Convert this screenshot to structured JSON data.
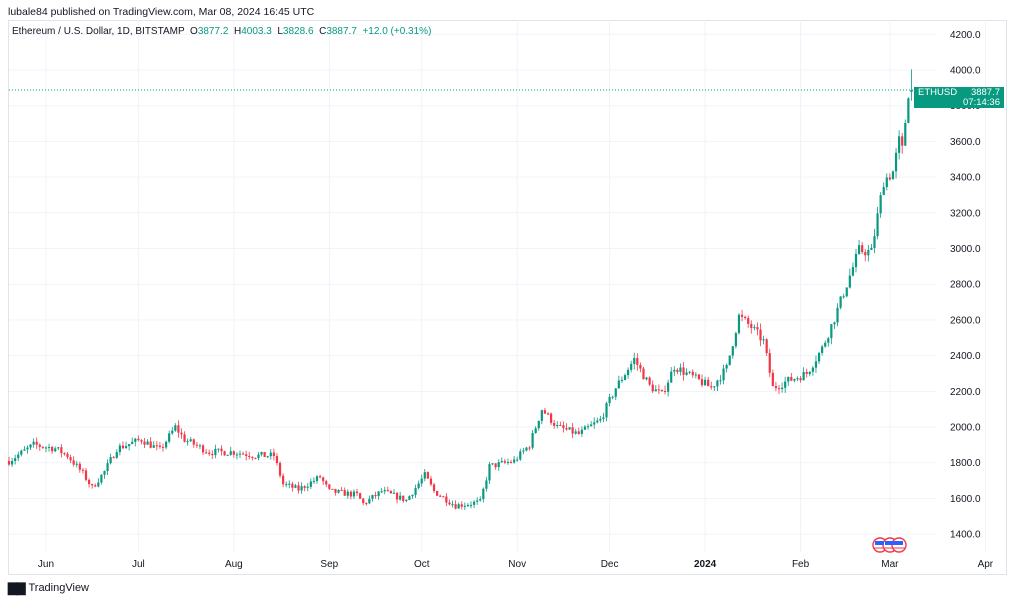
{
  "header": {
    "credit": "lubale84 published on TradingView.com, Mar 08, 2024 16:45 UTC",
    "symbol": "Ethereum / U.S. Dollar, 1D, BITSTAMP",
    "o_label": "O",
    "o_value": "3877.2",
    "h_label": "H",
    "h_value": "4003.3",
    "l_label": "L",
    "l_value": "3828.6",
    "c_label": "C",
    "c_value": "3887.7",
    "change": "+12.0 (+0.31%)"
  },
  "price_tag": {
    "symbol": "ETHUSD",
    "price": "3887.7",
    "countdown": "07:14:36"
  },
  "brand": {
    "name": "TradingView",
    "icon": "tradingview-logo-icon"
  },
  "colors": {
    "up": "#089981",
    "down": "#f23645",
    "grid": "#f0f3fa",
    "tag": "#089981"
  },
  "chart_data": {
    "type": "candlestick",
    "series_name": "ETHUSD",
    "ylim": [
      1300,
      4280
    ],
    "y_ticks": [
      "1400.0",
      "1600.0",
      "1800.0",
      "2000.0",
      "2200.0",
      "2400.0",
      "2600.0",
      "2800.0",
      "3000.0",
      "3200.0",
      "3400.0",
      "3600.0",
      "3800.0",
      "4000.0",
      "4200.0"
    ],
    "x_labels": [
      {
        "label": "Jun",
        "date": "2023-06-01",
        "bold": false
      },
      {
        "label": "Jul",
        "date": "2023-07-01",
        "bold": false
      },
      {
        "label": "Aug",
        "date": "2023-08-01",
        "bold": false
      },
      {
        "label": "Sep",
        "date": "2023-09-01",
        "bold": false
      },
      {
        "label": "Oct",
        "date": "2023-10-01",
        "bold": false
      },
      {
        "label": "Nov",
        "date": "2023-11-01",
        "bold": false
      },
      {
        "label": "Dec",
        "date": "2023-12-01",
        "bold": false
      },
      {
        "label": "2024",
        "date": "2024-01-01",
        "bold": true
      },
      {
        "label": "Feb",
        "date": "2024-02-01",
        "bold": false
      },
      {
        "label": "Mar",
        "date": "2024-03-01",
        "bold": false
      },
      {
        "label": "Apr",
        "date": "2024-04-01",
        "bold": false
      }
    ],
    "x_start": "2023-05-20",
    "current_price": 3887.7,
    "grid": true,
    "close_path": [
      [
        "2023-05-20",
        1810
      ],
      [
        "2023-05-28",
        1900
      ],
      [
        "2023-06-04",
        1880
      ],
      [
        "2023-06-08",
        1840
      ],
      [
        "2023-06-13",
        1740
      ],
      [
        "2023-06-16",
        1660
      ],
      [
        "2023-06-20",
        1750
      ],
      [
        "2023-06-24",
        1880
      ],
      [
        "2023-07-02",
        1930
      ],
      [
        "2023-07-08",
        1870
      ],
      [
        "2023-07-13",
        2000
      ],
      [
        "2023-07-16",
        1930
      ],
      [
        "2023-07-24",
        1860
      ],
      [
        "2023-08-01",
        1860
      ],
      [
        "2023-08-08",
        1840
      ],
      [
        "2023-08-14",
        1840
      ],
      [
        "2023-08-17",
        1680
      ],
      [
        "2023-08-22",
        1650
      ],
      [
        "2023-08-29",
        1720
      ],
      [
        "2023-09-01",
        1640
      ],
      [
        "2023-09-10",
        1620
      ],
      [
        "2023-09-12",
        1570
      ],
      [
        "2023-09-18",
        1640
      ],
      [
        "2023-09-26",
        1590
      ],
      [
        "2023-10-02",
        1730
      ],
      [
        "2023-10-05",
        1640
      ],
      [
        "2023-10-12",
        1560
      ],
      [
        "2023-10-20",
        1580
      ],
      [
        "2023-10-23",
        1780
      ],
      [
        "2023-10-31",
        1810
      ],
      [
        "2023-11-05",
        1900
      ],
      [
        "2023-11-09",
        2100
      ],
      [
        "2023-11-14",
        2000
      ],
      [
        "2023-11-21",
        1960
      ],
      [
        "2023-11-28",
        2040
      ],
      [
        "2023-12-03",
        2220
      ],
      [
        "2023-12-09",
        2380
      ],
      [
        "2023-12-14",
        2230
      ],
      [
        "2023-12-18",
        2180
      ],
      [
        "2023-12-22",
        2340
      ],
      [
        "2023-12-28",
        2280
      ],
      [
        "2024-01-03",
        2220
      ],
      [
        "2024-01-08",
        2330
      ],
      [
        "2024-01-12",
        2620
      ],
      [
        "2024-01-16",
        2560
      ],
      [
        "2024-01-20",
        2480
      ],
      [
        "2024-01-23",
        2220
      ],
      [
        "2024-01-28",
        2260
      ],
      [
        "2024-02-03",
        2300
      ],
      [
        "2024-02-08",
        2440
      ],
      [
        "2024-02-12",
        2610
      ],
      [
        "2024-02-16",
        2800
      ],
      [
        "2024-02-20",
        2990
      ],
      [
        "2024-02-24",
        2980
      ],
      [
        "2024-02-28",
        3380
      ],
      [
        "2024-03-02",
        3430
      ],
      [
        "2024-03-04",
        3600
      ],
      [
        "2024-03-05",
        3550
      ],
      [
        "2024-03-07",
        3877.2
      ],
      [
        "2024-03-08",
        3887.7
      ]
    ],
    "candle_count": 293,
    "last_candle": {
      "date": "2024-03-08",
      "open": 3877.2,
      "high": 4003.3,
      "low": 3828.6,
      "close": 3887.7
    }
  }
}
